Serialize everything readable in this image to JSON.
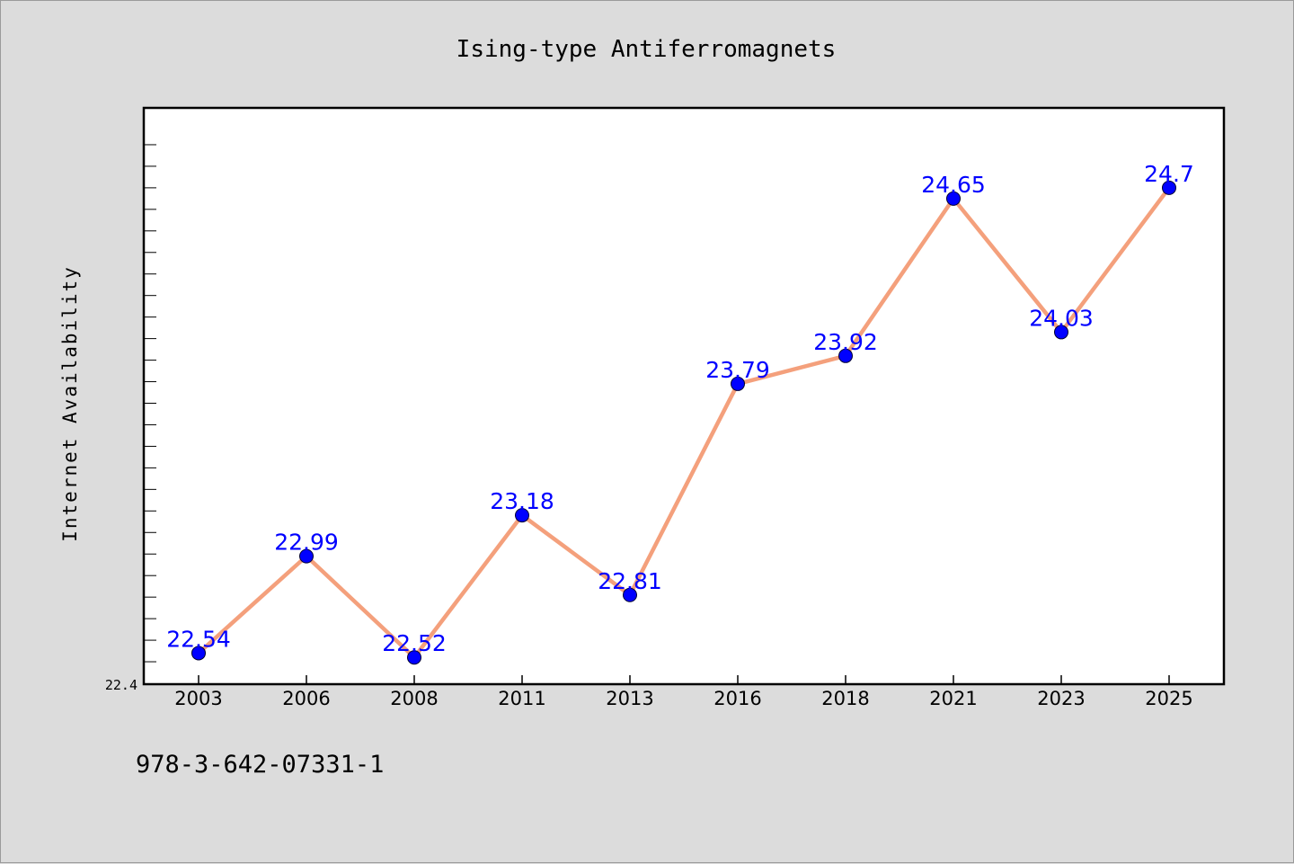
{
  "chart_data": {
    "type": "line",
    "title": "Ising-type Antiferromagnets",
    "xlabel": "",
    "ylabel": "Internet Availability",
    "categories": [
      "2003",
      "2006",
      "2008",
      "2011",
      "2013",
      "2016",
      "2018",
      "2021",
      "2023",
      "2025"
    ],
    "series": [
      {
        "values": [
          22.54,
          22.99,
          22.52,
          23.18,
          22.81,
          23.79,
          23.92,
          24.65,
          24.03,
          24.7
        ],
        "line_color": "#f4a07c",
        "marker_color": "#0000ff"
      }
    ],
    "data_labels": [
      "22.54",
      "22.99",
      "22.52",
      "23.18",
      "22.81",
      "23.79",
      "23.92",
      "24.65",
      "24.03",
      "24.7"
    ],
    "ylim": [
      22.4,
      25.0
    ],
    "yticks_labeled": [
      "22.4"
    ],
    "grid": false,
    "legend": false
  },
  "footer": {
    "code": "978-3-642-07331-1"
  }
}
